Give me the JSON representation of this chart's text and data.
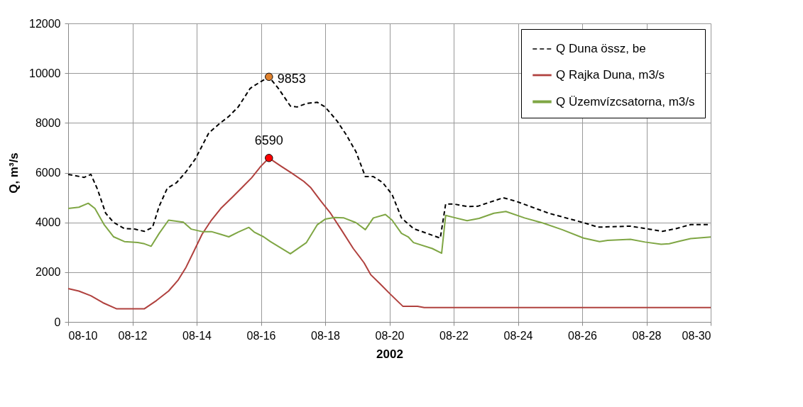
{
  "chart_data": {
    "type": "line",
    "xlabel": "2002",
    "ylabel": "Q, m³/s",
    "xlim": [
      "2002-08-10",
      "2002-08-30"
    ],
    "xticks": [
      {
        "value": "2002-08-10",
        "label": "08-10"
      },
      {
        "value": "2002-08-12",
        "label": "08-12"
      },
      {
        "value": "2002-08-14",
        "label": "08-14"
      },
      {
        "value": "2002-08-16",
        "label": "08-16"
      },
      {
        "value": "2002-08-18",
        "label": "08-18"
      },
      {
        "value": "2002-08-20",
        "label": "08-20"
      },
      {
        "value": "2002-08-22",
        "label": "08-22"
      },
      {
        "value": "2002-08-24",
        "label": "08-24"
      },
      {
        "value": "2002-08-26",
        "label": "08-26"
      },
      {
        "value": "2002-08-28",
        "label": "08-28"
      },
      {
        "value": "2002-08-30",
        "label": "08-30"
      }
    ],
    "ylim": [
      0,
      12000
    ],
    "yticks": [
      0,
      2000,
      4000,
      6000,
      8000,
      10000,
      12000
    ],
    "grid": true,
    "legend": "top right",
    "series": [
      {
        "name": "Q Duna össz, be",
        "color": "#000000",
        "line_style": "dashed",
        "x": [
          "2002-08-10T00:00",
          "2002-08-10T12:00",
          "2002-08-10T17:00",
          "2002-08-10T22:00",
          "2002-08-11T04:00",
          "2002-08-11T10:00",
          "2002-08-11T18:00",
          "2002-08-12T01:00",
          "2002-08-12T09:00",
          "2002-08-12T15:00",
          "2002-08-12T20:00",
          "2002-08-13T02:00",
          "2002-08-13T09:00",
          "2002-08-13T16:00",
          "2002-08-13T23:00",
          "2002-08-14T09:00",
          "2002-08-14T17:00",
          "2002-08-15T00:00",
          "2002-08-15T07:00",
          "2002-08-15T16:00",
          "2002-08-15T23:00",
          "2002-08-16T06:00",
          "2002-08-16T13:00",
          "2002-08-16T22:00",
          "2002-08-17T03:00",
          "2002-08-17T10:00",
          "2002-08-17T18:00",
          "2002-08-18T00:00",
          "2002-08-18T09:00",
          "2002-08-18T16:00",
          "2002-08-18T23:00",
          "2002-08-19T06:00",
          "2002-08-19T12:00",
          "2002-08-19T19:00",
          "2002-08-20T02:00",
          "2002-08-20T09:00",
          "2002-08-20T18:00",
          "2002-08-21T04:00",
          "2002-08-21T14:00",
          "2002-08-21T18:00",
          "2002-08-22T00:00",
          "2002-08-22T10:00",
          "2002-08-22T18:00",
          "2002-08-23T13:00",
          "2002-08-23T22:00",
          "2002-08-24T23:00",
          "2002-08-26T01:00",
          "2002-08-26T12:00",
          "2002-08-27T12:00",
          "2002-08-28T02:00",
          "2002-08-28T12:00",
          "2002-08-28T22:00",
          "2002-08-29T09:00",
          "2002-08-30T00:00"
        ],
        "values": [
          5930,
          5810,
          5930,
          5320,
          4370,
          4000,
          3750,
          3740,
          3640,
          3800,
          4650,
          5370,
          5600,
          6030,
          6550,
          7590,
          7970,
          8260,
          8640,
          9390,
          9630,
          9853,
          9390,
          8680,
          8640,
          8780,
          8830,
          8640,
          8070,
          7500,
          6840,
          5840,
          5840,
          5600,
          5120,
          4180,
          3750,
          3560,
          3370,
          4740,
          4740,
          4640,
          4650,
          4990,
          4860,
          4370,
          3990,
          3810,
          3850,
          3730,
          3640,
          3750,
          3910,
          3910
        ]
      },
      {
        "name": "Q Rajka Duna, m3/s",
        "color": "#b0413e",
        "line_style": "solid",
        "x": [
          "2002-08-10T00:00",
          "2002-08-10T08:00",
          "2002-08-10T17:00",
          "2002-08-11T02:00",
          "2002-08-11T12:00",
          "2002-08-12T09:00",
          "2002-08-12T18:00",
          "2002-08-13T03:00",
          "2002-08-13T10:00",
          "2002-08-13T16:00",
          "2002-08-13T22:00",
          "2002-08-14T04:00",
          "2002-08-14T11:00",
          "2002-08-14T18:00",
          "2002-08-15T03:00",
          "2002-08-15T10:00",
          "2002-08-15T17:00",
          "2002-08-16T00:00",
          "2002-08-16T06:00",
          "2002-08-16T15:00",
          "2002-08-16T23:00",
          "2002-08-17T08:00",
          "2002-08-17T13:00",
          "2002-08-17T21:00",
          "2002-08-18T04:00",
          "2002-08-18T12:00",
          "2002-08-18T21:00",
          "2002-08-19T05:00",
          "2002-08-19T10:00",
          "2002-08-19T17:00",
          "2002-08-20T00:00",
          "2002-08-20T10:00",
          "2002-08-20T21:00",
          "2002-08-21T02:00",
          "2002-08-30T00:00"
        ],
        "values": [
          1340,
          1240,
          1050,
          770,
          530,
          530,
          860,
          1240,
          1670,
          2190,
          2850,
          3520,
          4090,
          4560,
          5030,
          5410,
          5790,
          6260,
          6590,
          6260,
          5980,
          5650,
          5410,
          4840,
          4370,
          3710,
          2950,
          2380,
          1900,
          1530,
          1150,
          630,
          630,
          580,
          580
        ]
      },
      {
        "name": "Q Üzemvízcsatorna, m3/s",
        "color": "#7fa644",
        "line_style": "solid",
        "x": [
          "2002-08-10T00:00",
          "2002-08-10T08:00",
          "2002-08-10T15:00",
          "2002-08-10T20:00",
          "2002-08-11T03:00",
          "2002-08-11T10:00",
          "2002-08-11T18:00",
          "2002-08-12T04:00",
          "2002-08-12T09:00",
          "2002-08-12T14:00",
          "2002-08-12T20:00",
          "2002-08-13T03:00",
          "2002-08-13T14:00",
          "2002-08-13T20:00",
          "2002-08-14T04:00",
          "2002-08-14T11:00",
          "2002-08-14T18:00",
          "2002-08-15T00:00",
          "2002-08-15T07:00",
          "2002-08-15T15:00",
          "2002-08-15T19:00",
          "2002-08-16T02:00",
          "2002-08-16T07:00",
          "2002-08-16T22:00",
          "2002-08-17T10:00",
          "2002-08-17T18:00",
          "2002-08-18T00:00",
          "2002-08-18T07:00",
          "2002-08-18T14:00",
          "2002-08-18T23:00",
          "2002-08-19T06:00",
          "2002-08-19T12:00",
          "2002-08-19T21:00",
          "2002-08-20T02:00",
          "2002-08-20T09:00",
          "2002-08-20T14:00",
          "2002-08-20T18:00",
          "2002-08-21T08:00",
          "2002-08-21T15:00",
          "2002-08-21T18:00",
          "2002-08-22T00:00",
          "2002-08-22T10:00",
          "2002-08-22T19:00",
          "2002-08-23T06:00",
          "2002-08-23T15:00",
          "2002-08-24T05:00",
          "2002-08-24T19:00",
          "2002-08-25T09:00",
          "2002-08-26T01:00",
          "2002-08-26T13:00",
          "2002-08-26T19:00",
          "2002-08-27T12:00",
          "2002-08-27T23:00",
          "2002-08-28T11:00",
          "2002-08-28T17:00",
          "2002-08-29T01:00",
          "2002-08-29T09:00",
          "2002-08-30T00:00"
        ],
        "values": [
          4560,
          4610,
          4770,
          4560,
          3900,
          3420,
          3230,
          3190,
          3140,
          3040,
          3560,
          4090,
          4010,
          3730,
          3630,
          3630,
          3520,
          3420,
          3610,
          3800,
          3610,
          3420,
          3230,
          2740,
          3190,
          3900,
          4130,
          4200,
          4180,
          3990,
          3710,
          4180,
          4320,
          4090,
          3560,
          3420,
          3190,
          2950,
          2760,
          4280,
          4200,
          4070,
          4160,
          4370,
          4440,
          4180,
          3970,
          3710,
          3370,
          3230,
          3280,
          3320,
          3210,
          3120,
          3140,
          3250,
          3350,
          3410
        ]
      },
      {
        "type": "scatter",
        "marker": "circle",
        "color": "#e0822f",
        "x": [
          "2002-08-16T06:00"
        ],
        "values": [
          9853
        ]
      },
      {
        "type": "scatter",
        "marker": "circle",
        "color": "#ff0000",
        "x": [
          "2002-08-16T06:00"
        ],
        "values": [
          6590
        ]
      }
    ],
    "annotations": [
      {
        "text": "9853",
        "x": "2002-08-16T06:00",
        "y": 9853
      },
      {
        "text": "6590",
        "x": "2002-08-16T06:00",
        "y": 6590
      }
    ]
  }
}
